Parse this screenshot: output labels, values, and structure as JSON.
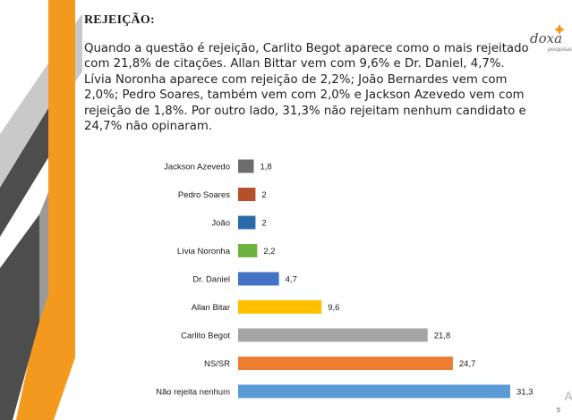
{
  "slide": {
    "heading": "REJEIÇÃO:",
    "paragraph": "Quando a questão é rejeição, Carlito Begot aparece como o mais rejeitado com 21,8% de citações. Allan Bittar vem com 9,6% e Dr. Daniel, 4,7%. Lívia Noronha aparece com rejeição de 2,2%; João Bernardes vem com 2,0%; Pedro Soares, também vem com 2,0% e Jackson Azevedo vem com rejeição de 1,8%. Por outro lado, 31,3% não rejeitam nenhum candidato e 24,7% não opinaram.",
    "page_number": "5",
    "corner_letter": "A",
    "logo": {
      "text": "doxa",
      "sub": "pesquisas"
    }
  },
  "colors": {
    "stripe_orange": "#f39a1e",
    "stripe_dark": "#4d4d4d",
    "stripe_gray": "#b3b3b3"
  },
  "chart_data": {
    "type": "bar",
    "orientation": "horizontal",
    "categories": [
      "Jackson Azevedo",
      "Pedro Soares",
      "João",
      "Lívia Noronha",
      "Dr. Daniel",
      "Allan Bitar",
      "Carlito Begot",
      "NS/SR",
      "Não rejeita nenhum"
    ],
    "values": [
      1.8,
      2,
      2,
      2.2,
      4.7,
      9.6,
      21.8,
      24.7,
      31.3
    ],
    "value_labels": [
      "1,8",
      "2",
      "2",
      "2,2",
      "4,7",
      "9,6",
      "21,8",
      "24,7",
      "31,3"
    ],
    "colors": [
      "#6d6d6d",
      "#b5512a",
      "#2b6aa8",
      "#6cb33f",
      "#4472c4",
      "#ffc000",
      "#a5a5a5",
      "#ed7d31",
      "#5b9bd5"
    ],
    "xlim": [
      0,
      31.3
    ],
    "grid": false,
    "title": "",
    "xlabel": "",
    "ylabel": ""
  }
}
